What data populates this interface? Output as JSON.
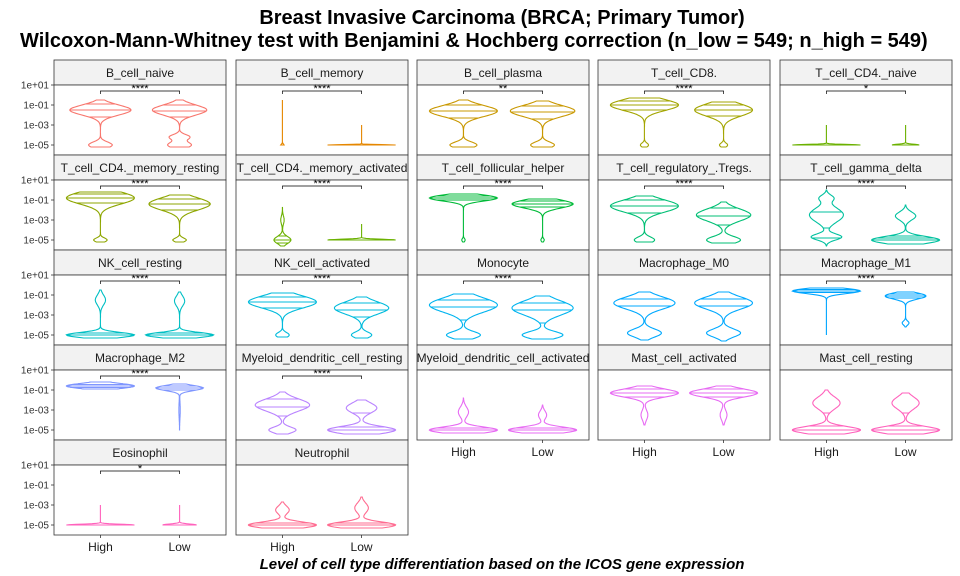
{
  "chart_data": {
    "type": "violin",
    "title": "Breast Invasive Carcinoma (BRCA; Primary Tumor)",
    "subtitle": "Wilcoxon-Mann-Whitney test with Benjamini & Hochberg correction (n_low = 549; n_high = 549)",
    "xlabel": "Level of cell type differentiation based on the ICOS gene expression",
    "ylabel": "",
    "y_scale": "log10",
    "y_ticks": [
      "1e-05",
      "1e-03",
      "1e-01",
      "1e+01"
    ],
    "ylim_log10": [
      -6,
      1
    ],
    "x_categories": [
      "High",
      "Low"
    ],
    "panels": [
      {
        "name": "B_cell_naive",
        "color": "#F8766D",
        "sig": "****",
        "high": {
          "bulges": [
            [
              -1.5,
              0.9,
              0.5
            ],
            [
              -5,
              0.35,
              0.3
            ]
          ],
          "quartiles": [
            -2.2,
            -1.5,
            -0.9
          ],
          "lo": -5.2,
          "hi": -0.5
        },
        "low": {
          "bulges": [
            [
              -1.5,
              0.8,
              0.5
            ],
            [
              -4.2,
              0.3,
              0.25
            ],
            [
              -5,
              0.35,
              0.3
            ]
          ],
          "quartiles": [
            -2.2,
            -1.6,
            -1.0
          ],
          "lo": -5.2,
          "hi": -0.5
        }
      },
      {
        "name": "B_cell_memory",
        "color": "#E58700",
        "sig": "****",
        "high": {
          "bulges": [
            [
              -5,
              0.05,
              0.1
            ]
          ],
          "quartiles": [
            -5
          ],
          "lo": -5,
          "hi": -0.5
        },
        "low": {
          "bulges": [
            [
              -5,
              1.0,
              0.04
            ]
          ],
          "quartiles": [
            -5
          ],
          "lo": -5,
          "hi": -3
        }
      },
      {
        "name": "B_cell_plasma",
        "color": "#C99800",
        "sig": "**",
        "high": {
          "bulges": [
            [
              -1.6,
              1.0,
              0.55
            ],
            [
              -5,
              0.4,
              0.3
            ]
          ],
          "quartiles": [
            -2.3,
            -1.6,
            -1.0
          ],
          "lo": -5.2,
          "hi": -0.5
        },
        "low": {
          "bulges": [
            [
              -1.6,
              0.95,
              0.55
            ],
            [
              -5,
              0.35,
              0.3
            ]
          ],
          "quartiles": [
            -2.4,
            -1.7,
            -1.1
          ],
          "lo": -5.2,
          "hi": -0.6
        }
      },
      {
        "name": "T_cell_CD8.",
        "color": "#A3A500",
        "sig": "****",
        "high": {
          "bulges": [
            [
              -1.0,
              1.0,
              0.55
            ],
            [
              -5,
              0.12,
              0.2
            ]
          ],
          "quartiles": [
            -1.5,
            -1.0,
            -0.6
          ],
          "lo": -5.2,
          "hi": -0.3
        },
        "low": {
          "bulges": [
            [
              -1.5,
              0.85,
              0.6
            ],
            [
              -5,
              0.12,
              0.2
            ]
          ],
          "quartiles": [
            -2.1,
            -1.5,
            -1.0
          ],
          "lo": -5.2,
          "hi": -0.7
        }
      },
      {
        "name": "T_cell_CD4._naive",
        "color": "#6BB100",
        "sig": "*",
        "high": {
          "bulges": [
            [
              -5,
              1.0,
              0.06
            ]
          ],
          "quartiles": [
            -5
          ],
          "lo": -5,
          "hi": -3
        },
        "low": {
          "bulges": [
            [
              -5,
              0.4,
              0.08
            ]
          ],
          "quartiles": [
            -5
          ],
          "lo": -5,
          "hi": -3
        }
      },
      {
        "name": "T_cell_CD4._memory_resting",
        "color": "#8EA600",
        "sig": "****",
        "high": {
          "bulges": [
            [
              -0.8,
              1.0,
              0.6
            ],
            [
              -5,
              0.2,
              0.2
            ]
          ],
          "quartiles": [
            -1.3,
            -0.8,
            -0.4
          ],
          "lo": -5.2,
          "hi": -0.2
        },
        "low": {
          "bulges": [
            [
              -1.4,
              0.9,
              0.6
            ],
            [
              -5,
              0.2,
              0.2
            ]
          ],
          "quartiles": [
            -2.0,
            -1.4,
            -0.9
          ],
          "lo": -5.2,
          "hi": -0.5
        }
      },
      {
        "name": "T_cell_CD4._memory_activated",
        "color": "#6BB100",
        "sig": "****",
        "high": {
          "bulges": [
            [
              -5,
              0.25,
              0.35
            ],
            [
              -3,
              0.05,
              0.4
            ]
          ],
          "quartiles": [
            -5.3,
            -5.0,
            -4.6
          ],
          "lo": -5.6,
          "hi": -1.7
        },
        "low": {
          "bulges": [
            [
              -5,
              1.0,
              0.08
            ]
          ],
          "quartiles": [
            -5
          ],
          "lo": -5,
          "hi": -3.4
        }
      },
      {
        "name": "T_cell_follicular_helper",
        "color": "#00BA38",
        "sig": "****",
        "high": {
          "bulges": [
            [
              -0.8,
              1.0,
              0.3
            ],
            [
              -5,
              0.05,
              0.15
            ]
          ],
          "quartiles": [
            -1.0,
            -0.8,
            -0.6
          ],
          "lo": -5.2,
          "hi": -0.4
        },
        "low": {
          "bulges": [
            [
              -1.4,
              0.9,
              0.4
            ],
            [
              -5,
              0.05,
              0.15
            ]
          ],
          "quartiles": [
            -1.7,
            -1.4,
            -1.1
          ],
          "lo": -5.2,
          "hi": -0.9
        }
      },
      {
        "name": "T_cell_regulatory_.Tregs.",
        "color": "#00BF74",
        "sig": "****",
        "high": {
          "bulges": [
            [
              -1.6,
              1.0,
              0.6
            ],
            [
              -5,
              0.3,
              0.3
            ]
          ],
          "quartiles": [
            -2.3,
            -1.6,
            -1.0
          ],
          "lo": -5.2,
          "hi": -0.6
        },
        "low": {
          "bulges": [
            [
              -2.5,
              0.8,
              0.6
            ],
            [
              -5,
              0.5,
              0.35
            ]
          ],
          "quartiles": [
            -3.5,
            -2.6,
            -1.8
          ],
          "lo": -5.3,
          "hi": -1.2
        }
      },
      {
        "name": "T_cell_gamma_delta",
        "color": "#00C19F",
        "sig": "****",
        "high": {
          "bulges": [
            [
              -2.5,
              0.5,
              0.7
            ],
            [
              -4.7,
              0.45,
              0.3
            ],
            [
              -0.8,
              0.2,
              0.3
            ]
          ],
          "quartiles": [
            -4.8,
            -3.8,
            -2.2
          ],
          "lo": -5.6,
          "hi": 0
        },
        "low": {
          "bulges": [
            [
              -5,
              1.0,
              0.35
            ],
            [
              -2.6,
              0.3,
              0.4
            ]
          ],
          "quartiles": [
            -5.0,
            -4.8,
            -4.6
          ],
          "lo": -5.4,
          "hi": -1.5
        }
      },
      {
        "name": "NK_cell_resting",
        "color": "#00BFC4",
        "sig": "****",
        "high": {
          "bulges": [
            [
              -5,
              1.0,
              0.25
            ],
            [
              -1.5,
              0.15,
              0.5
            ]
          ],
          "quartiles": [
            -5.0,
            -5.0,
            -4.8
          ],
          "lo": -5.3,
          "hi": -0.5
        },
        "low": {
          "bulges": [
            [
              -5,
              1.0,
              0.25
            ],
            [
              -1.6,
              0.15,
              0.5
            ]
          ],
          "quartiles": [
            -5.0,
            -5.0,
            -4.8
          ],
          "lo": -5.3,
          "hi": -0.7
        }
      },
      {
        "name": "NK_cell_activated",
        "color": "#00BBDC",
        "sig": "****",
        "high": {
          "bulges": [
            [
              -1.7,
              1.0,
              0.6
            ],
            [
              -5,
              0.2,
              0.25
            ]
          ],
          "quartiles": [
            -2.3,
            -1.7,
            -1.2
          ],
          "lo": -5.2,
          "hi": -0.8
        },
        "low": {
          "bulges": [
            [
              -2.3,
              0.8,
              0.6
            ],
            [
              -5,
              0.3,
              0.3
            ]
          ],
          "quartiles": [
            -3.2,
            -2.5,
            -1.8
          ],
          "lo": -5.3,
          "hi": -1.2
        }
      },
      {
        "name": "Monocyte",
        "color": "#00B4EF",
        "sig": "****",
        "high": {
          "bulges": [
            [
              -2.0,
              1.0,
              0.7
            ],
            [
              -5,
              0.5,
              0.35
            ]
          ],
          "quartiles": [
            -3.5,
            -2.2,
            -1.5
          ],
          "lo": -5.4,
          "hi": -0.9
        },
        "low": {
          "bulges": [
            [
              -2.3,
              0.9,
              0.7
            ],
            [
              -5,
              0.6,
              0.35
            ]
          ],
          "quartiles": [
            -3.8,
            -2.5,
            -1.8
          ],
          "lo": -5.4,
          "hi": -1.1
        }
      },
      {
        "name": "Macrophage_M0",
        "color": "#00A9FF",
        "sig": "",
        "high": {
          "bulges": [
            [
              -1.8,
              0.9,
              0.6
            ],
            [
              -4.8,
              0.5,
              0.4
            ]
          ],
          "quartiles": [
            -3.6,
            -2.1,
            -1.4
          ],
          "lo": -5.5,
          "hi": -0.7
        },
        "low": {
          "bulges": [
            [
              -1.8,
              0.85,
              0.6
            ],
            [
              -4.8,
              0.5,
              0.4
            ]
          ],
          "quartiles": [
            -3.6,
            -2.1,
            -1.4
          ],
          "lo": -5.6,
          "hi": -0.7
        }
      },
      {
        "name": "Macrophage_M1",
        "color": "#00A5FF",
        "sig": "****",
        "high": {
          "bulges": [
            [
              -0.6,
              1.0,
              0.25
            ]
          ],
          "quartiles": [
            -0.75,
            -0.6,
            -0.45
          ],
          "lo": -5.0,
          "hi": -0.3
        },
        "low": {
          "bulges": [
            [
              -1.1,
              0.6,
              0.3
            ],
            [
              -3.8,
              0.1,
              0.2
            ]
          ],
          "quartiles": [
            -1.3,
            -1.1,
            -0.9
          ],
          "lo": -4.2,
          "hi": -0.7
        }
      },
      {
        "name": "Macrophage_M2",
        "color": "#7F96FF",
        "sig": "****",
        "high": {
          "bulges": [
            [
              -0.6,
              1.0,
              0.25
            ]
          ],
          "quartiles": [
            -0.75,
            -0.6,
            -0.45
          ],
          "lo": -0.9,
          "hi": -0.2
        },
        "low": {
          "bulges": [
            [
              -0.8,
              0.7,
              0.25
            ],
            [
              -3,
              0.02,
              0.8
            ]
          ],
          "quartiles": [
            -1.0,
            -0.8,
            -0.6
          ],
          "lo": -5.0,
          "hi": -0.4
        }
      },
      {
        "name": "Myeloid_dendritic_cell_resting",
        "color": "#B983FF",
        "sig": "****",
        "high": {
          "bulges": [
            [
              -2.5,
              0.8,
              0.6
            ],
            [
              -5,
              0.4,
              0.3
            ]
          ],
          "quartiles": [
            -3.6,
            -2.7,
            -1.9
          ],
          "lo": -5.4,
          "hi": -1.2
        },
        "low": {
          "bulges": [
            [
              -5,
              1.0,
              0.35
            ],
            [
              -2.8,
              0.45,
              0.5
            ]
          ],
          "quartiles": [
            -5.0,
            -4.7,
            -3.3
          ],
          "lo": -5.4,
          "hi": -2.0
        }
      },
      {
        "name": "Myeloid_dendritic_cell_activated",
        "color": "#E76BF3",
        "sig": "",
        "high": {
          "bulges": [
            [
              -5,
              1.0,
              0.3
            ],
            [
              -3.2,
              0.15,
              0.5
            ]
          ],
          "quartiles": [
            -5.0,
            -5.0,
            -4.8
          ],
          "lo": -5.3,
          "hi": -1.8
        },
        "low": {
          "bulges": [
            [
              -5,
              1.0,
              0.3
            ],
            [
              -3.5,
              0.12,
              0.4
            ]
          ],
          "quartiles": [
            -5.0,
            -5.0,
            -4.8
          ],
          "lo": -5.3,
          "hi": -2.5
        }
      },
      {
        "name": "Mast_cell_activated",
        "color": "#E76BF3",
        "sig": "",
        "high": {
          "bulges": [
            [
              -1.3,
              1.0,
              0.4
            ],
            [
              -3.5,
              0.1,
              0.5
            ]
          ],
          "quartiles": [
            -1.7,
            -1.3,
            -0.9
          ],
          "lo": -4.5,
          "hi": -0.6
        },
        "low": {
          "bulges": [
            [
              -1.3,
              1.0,
              0.4
            ],
            [
              -3.5,
              0.1,
              0.5
            ]
          ],
          "quartiles": [
            -1.7,
            -1.3,
            -0.9
          ],
          "lo": -4.5,
          "hi": -0.6
        }
      },
      {
        "name": "Mast_cell_resting",
        "color": "#FF62BC",
        "sig": "",
        "high": {
          "bulges": [
            [
              -5,
              1.0,
              0.35
            ],
            [
              -2.3,
              0.4,
              0.6
            ]
          ],
          "quartiles": [
            -5.0,
            -4.6,
            -3.3
          ],
          "lo": -5.4,
          "hi": -1.0
        },
        "low": {
          "bulges": [
            [
              -5,
              1.0,
              0.35
            ],
            [
              -2.3,
              0.4,
              0.6
            ]
          ],
          "quartiles": [
            -5.0,
            -4.6,
            -3.3
          ],
          "lo": -5.4,
          "hi": -1.3
        }
      },
      {
        "name": "Eosinophil",
        "color": "#FF62BC",
        "sig": "*",
        "high": {
          "bulges": [
            [
              -5,
              1.0,
              0.08
            ]
          ],
          "quartiles": [
            -5
          ],
          "lo": -5,
          "hi": -3
        },
        "low": {
          "bulges": [
            [
              -5,
              0.5,
              0.1
            ]
          ],
          "quartiles": [
            -5
          ],
          "lo": -5,
          "hi": -3
        }
      },
      {
        "name": "Neutrophil",
        "color": "#FF6C91",
        "sig": "",
        "high": {
          "bulges": [
            [
              -5,
              1.0,
              0.3
            ],
            [
              -3.5,
              0.2,
              0.4
            ]
          ],
          "quartiles": [
            -5.0,
            -5.0,
            -4.8
          ],
          "lo": -5.3,
          "hi": -2.7
        },
        "low": {
          "bulges": [
            [
              -5,
              1.0,
              0.3
            ],
            [
              -3.3,
              0.2,
              0.5
            ]
          ],
          "quartiles": [
            -5.0,
            -5.0,
            -4.8
          ],
          "lo": -5.3,
          "hi": -2.2
        }
      }
    ]
  }
}
